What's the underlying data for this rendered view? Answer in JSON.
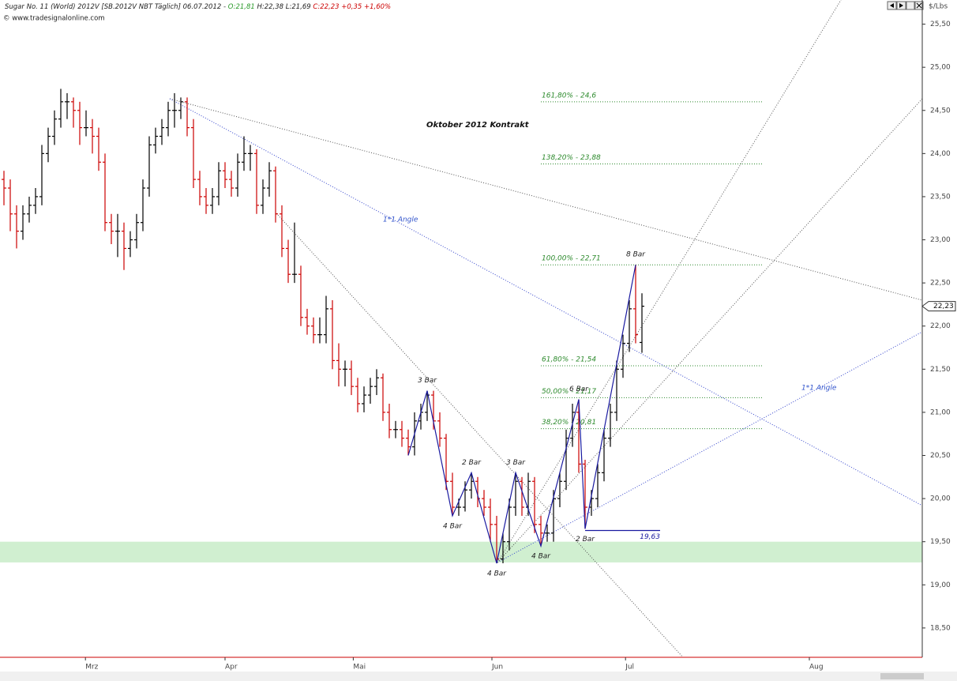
{
  "chart_data": {
    "type": "ohlc",
    "header": {
      "title": "Sugar No. 11 (World) 2012V [SB.2012V NBT Täglich] 06.07.2012 - ",
      "open": "O:21,81",
      "high_low": " H:22,38 L:21,69 ",
      "close": "C:22,23 +0,35 +1,60%",
      "source": "© www.tradesignalonline.com"
    },
    "subtitle": "Oktober 2012 Kontrakt",
    "unit": "$/Lbs",
    "last_price": {
      "value": 22.23,
      "label": "22,23"
    },
    "annotations": [
      "1*1 Angle",
      "1*1 Angle"
    ],
    "up_color": "#000000",
    "down_color": "#cc0000",
    "zigzag_color": "#1a1aa0",
    "fib_color": "#2e8b2e",
    "ylim": [
      18.16,
      25.78
    ],
    "yticks": [
      {
        "value": 18.5,
        "label": "18,50"
      },
      {
        "value": 19,
        "label": "19,00"
      },
      {
        "value": 19.5,
        "label": "19,50"
      },
      {
        "value": 20,
        "label": "20,00"
      },
      {
        "value": 20.5,
        "label": "20,50"
      },
      {
        "value": 21,
        "label": "21,00"
      },
      {
        "value": 21.5,
        "label": "21,50"
      },
      {
        "value": 22,
        "label": "22,00"
      },
      {
        "value": 22.5,
        "label": "22,50"
      },
      {
        "value": 23,
        "label": "23,00"
      },
      {
        "value": 23.5,
        "label": "23,50"
      },
      {
        "value": 24,
        "label": "24,00"
      },
      {
        "value": 24.5,
        "label": "24,50"
      },
      {
        "value": 25,
        "label": "25,00"
      },
      {
        "value": 25.5,
        "label": "25,50"
      }
    ],
    "xlim": [
      -0.625,
      145.375
    ],
    "xticks": [
      {
        "value": 12.9,
        "label": "Mrz"
      },
      {
        "value": 35,
        "label": "Apr"
      },
      {
        "value": 55.3,
        "label": "Mai"
      },
      {
        "value": 77.25,
        "label": "Jun"
      },
      {
        "value": 98.4,
        "label": "Jul"
      },
      {
        "value": 127.5,
        "label": "Aug"
      }
    ],
    "support_zone": [
      19.26,
      19.5
    ],
    "fib_levels": [
      {
        "value": 24.6,
        "label": "161,80% - 24,6"
      },
      {
        "value": 23.88,
        "label": "138,20% - 23,88"
      },
      {
        "value": 22.71,
        "label": "100,00% - 22,71"
      },
      {
        "value": 21.54,
        "label": "61,80% - 21,54"
      },
      {
        "value": 21.17,
        "label": "50,00% - 21,17"
      },
      {
        "value": 20.81,
        "label": "38,20% - 20,81"
      }
    ],
    "low_line": {
      "value": 19.63,
      "label": "19,63"
    },
    "zigzag": [
      {
        "bar": 64,
        "value": 20.5,
        "label": null
      },
      {
        "bar": 67,
        "value": 21.25,
        "label": "3 Bar"
      },
      {
        "bar": 71,
        "value": 19.8,
        "label": "4 Bar"
      },
      {
        "bar": 74,
        "value": 20.3,
        "label": "2 Bar"
      },
      {
        "bar": 78,
        "value": 19.25,
        "label": "4 Bar"
      },
      {
        "bar": 81,
        "value": 20.3,
        "label": "3 Bar"
      },
      {
        "bar": 85,
        "value": 19.45,
        "label": "4 Bar"
      },
      {
        "bar": 91,
        "value": 21.15,
        "label": "6 Bar"
      },
      {
        "bar": 92,
        "value": 19.65,
        "label": "2 Bar"
      },
      {
        "bar": 100,
        "value": 22.71,
        "label": "8 Bar"
      }
    ],
    "ohlc": [
      [
        23.7,
        23.8,
        23.4,
        23.6
      ],
      [
        23.6,
        23.7,
        23.1,
        23.3
      ],
      [
        23.3,
        23.4,
        22.9,
        23.1
      ],
      [
        23.1,
        23.4,
        23.0,
        23.3
      ],
      [
        23.3,
        23.5,
        23.2,
        23.4
      ],
      [
        23.4,
        23.6,
        23.3,
        23.5
      ],
      [
        23.5,
        24.1,
        23.4,
        24.0
      ],
      [
        24.0,
        24.3,
        23.9,
        24.2
      ],
      [
        24.2,
        24.5,
        24.1,
        24.4
      ],
      [
        24.4,
        24.75,
        24.3,
        24.6
      ],
      [
        24.6,
        24.7,
        24.4,
        24.6
      ],
      [
        24.6,
        24.65,
        24.3,
        24.5
      ],
      [
        24.5,
        24.6,
        24.1,
        24.3
      ],
      [
        24.3,
        24.5,
        24.2,
        24.3
      ],
      [
        24.3,
        24.4,
        24.0,
        24.2
      ],
      [
        24.2,
        24.3,
        23.8,
        23.9
      ],
      [
        23.9,
        24.0,
        23.1,
        23.2
      ],
      [
        23.2,
        23.3,
        22.95,
        23.1
      ],
      [
        23.1,
        23.3,
        22.8,
        23.1
      ],
      [
        23.1,
        23.2,
        22.65,
        22.9
      ],
      [
        22.9,
        23.1,
        22.8,
        23.0
      ],
      [
        23.0,
        23.3,
        22.9,
        23.2
      ],
      [
        23.2,
        23.7,
        23.1,
        23.6
      ],
      [
        23.6,
        24.2,
        23.5,
        24.1
      ],
      [
        24.1,
        24.3,
        24.0,
        24.2
      ],
      [
        24.2,
        24.4,
        24.1,
        24.3
      ],
      [
        24.3,
        24.6,
        24.2,
        24.5
      ],
      [
        24.5,
        24.7,
        24.3,
        24.5
      ],
      [
        24.5,
        24.65,
        24.4,
        24.6
      ],
      [
        24.6,
        24.65,
        24.2,
        24.3
      ],
      [
        24.3,
        24.4,
        23.6,
        23.7
      ],
      [
        23.7,
        23.8,
        23.4,
        23.5
      ],
      [
        23.5,
        23.6,
        23.3,
        23.4
      ],
      [
        23.4,
        23.6,
        23.3,
        23.5
      ],
      [
        23.5,
        23.9,
        23.4,
        23.8
      ],
      [
        23.8,
        23.9,
        23.6,
        23.7
      ],
      [
        23.7,
        23.8,
        23.5,
        23.6
      ],
      [
        23.6,
        24.0,
        23.5,
        23.9
      ],
      [
        23.9,
        24.2,
        23.8,
        24.0
      ],
      [
        24.0,
        24.1,
        23.8,
        24.0
      ],
      [
        24.0,
        24.05,
        23.3,
        23.4
      ],
      [
        23.4,
        23.7,
        23.3,
        23.6
      ],
      [
        23.6,
        23.9,
        23.5,
        23.8
      ],
      [
        23.8,
        23.85,
        23.2,
        23.3
      ],
      [
        23.3,
        23.4,
        22.8,
        22.9
      ],
      [
        22.9,
        23.0,
        22.5,
        22.6
      ],
      [
        22.6,
        23.2,
        22.5,
        22.6
      ],
      [
        22.6,
        22.7,
        22.0,
        22.1
      ],
      [
        22.1,
        22.2,
        21.9,
        22.0
      ],
      [
        22.0,
        22.1,
        21.8,
        21.9
      ],
      [
        21.9,
        22.1,
        21.8,
        21.9
      ],
      [
        21.9,
        22.35,
        21.8,
        22.2
      ],
      [
        22.2,
        22.3,
        21.5,
        21.6
      ],
      [
        21.6,
        21.8,
        21.3,
        21.5
      ],
      [
        21.5,
        21.6,
        21.3,
        21.5
      ],
      [
        21.5,
        21.6,
        21.2,
        21.3
      ],
      [
        21.3,
        21.4,
        21.0,
        21.1
      ],
      [
        21.1,
        21.3,
        21.0,
        21.2
      ],
      [
        21.2,
        21.4,
        21.1,
        21.3
      ],
      [
        21.3,
        21.5,
        21.2,
        21.4
      ],
      [
        21.4,
        21.45,
        20.9,
        21.0
      ],
      [
        21.0,
        21.1,
        20.7,
        20.8
      ],
      [
        20.8,
        20.9,
        20.7,
        20.8
      ],
      [
        20.8,
        20.9,
        20.6,
        20.7
      ],
      [
        20.7,
        20.8,
        20.5,
        20.6
      ],
      [
        20.6,
        21.0,
        20.5,
        20.9
      ],
      [
        20.9,
        21.1,
        20.8,
        21.0
      ],
      [
        21.0,
        21.25,
        20.9,
        21.2
      ],
      [
        21.2,
        21.25,
        20.8,
        20.9
      ],
      [
        20.9,
        21.0,
        20.6,
        20.7
      ],
      [
        20.7,
        20.75,
        20.1,
        20.2
      ],
      [
        20.2,
        20.3,
        19.8,
        19.9
      ],
      [
        19.9,
        20.0,
        19.8,
        19.9
      ],
      [
        19.9,
        20.2,
        19.85,
        20.1
      ],
      [
        20.1,
        20.3,
        20.0,
        20.2
      ],
      [
        20.2,
        20.25,
        19.9,
        20.0
      ],
      [
        20.0,
        20.1,
        19.8,
        19.9
      ],
      [
        19.9,
        20.0,
        19.5,
        19.7
      ],
      [
        19.7,
        19.8,
        19.25,
        19.3
      ],
      [
        19.3,
        19.6,
        19.25,
        19.5
      ],
      [
        19.5,
        20.0,
        19.4,
        19.9
      ],
      [
        19.9,
        20.3,
        19.8,
        20.2
      ],
      [
        20.2,
        20.25,
        19.8,
        19.9
      ],
      [
        19.9,
        20.3,
        19.8,
        20.2
      ],
      [
        20.2,
        20.25,
        19.6,
        19.7
      ],
      [
        19.7,
        19.8,
        19.45,
        19.6
      ],
      [
        19.6,
        19.7,
        19.5,
        19.6
      ],
      [
        19.6,
        20.1,
        19.5,
        20.0
      ],
      [
        20.0,
        20.3,
        19.9,
        20.2
      ],
      [
        20.2,
        20.8,
        20.1,
        20.7
      ],
      [
        20.7,
        21.1,
        20.6,
        21.0
      ],
      [
        21.0,
        21.15,
        20.3,
        20.4
      ],
      [
        20.4,
        20.45,
        19.65,
        19.9
      ],
      [
        19.9,
        20.1,
        19.8,
        20.0
      ],
      [
        20.0,
        20.4,
        19.9,
        20.3
      ],
      [
        20.3,
        20.8,
        20.2,
        20.7
      ],
      [
        20.7,
        21.1,
        20.6,
        21.0
      ],
      [
        21.0,
        21.6,
        20.9,
        21.5
      ],
      [
        21.5,
        21.9,
        21.4,
        21.8
      ],
      [
        21.8,
        22.3,
        21.7,
        22.2
      ],
      [
        22.2,
        22.71,
        21.8,
        21.9
      ],
      [
        21.81,
        22.38,
        21.69,
        22.23
      ]
    ]
  }
}
